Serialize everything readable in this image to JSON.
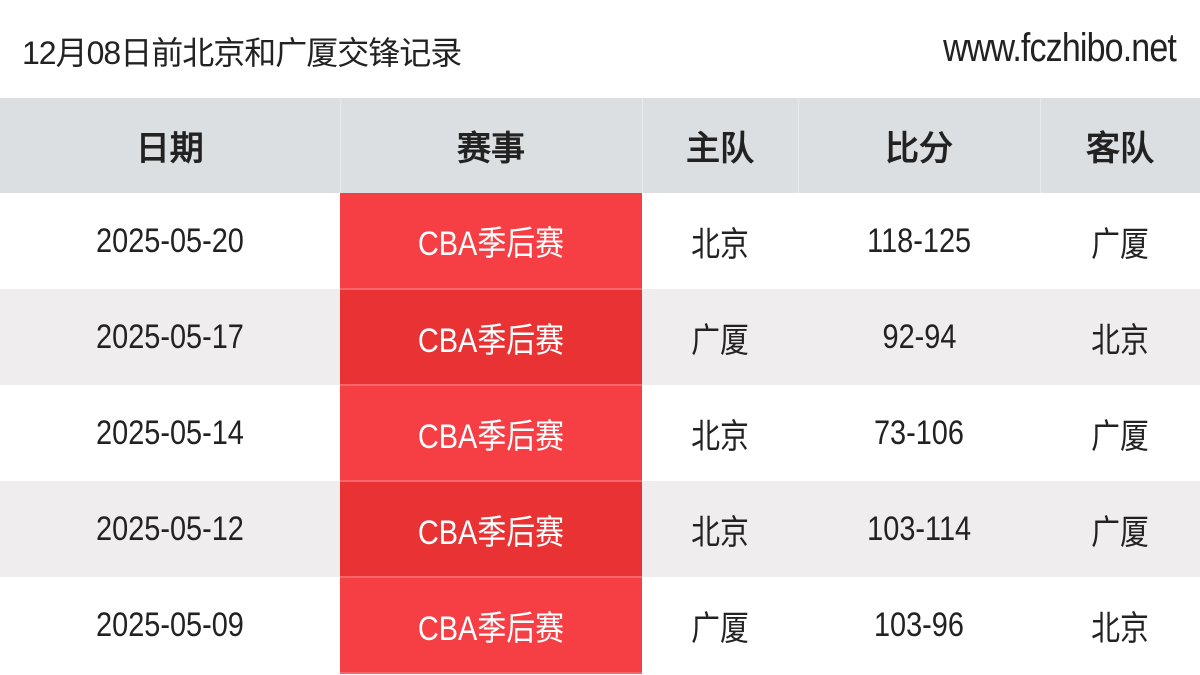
{
  "header": {
    "title": "12月08日前北京和广厦交锋记录",
    "site": "www.fczhibo.net"
  },
  "columns": [
    "日期",
    "赛事",
    "主队",
    "比分",
    "客队"
  ],
  "rows": [
    {
      "date": "2025-05-20",
      "competition": "CBA季后赛",
      "home": "北京",
      "score": "118-125",
      "away": "广厦"
    },
    {
      "date": "2025-05-17",
      "competition": "CBA季后赛",
      "home": "广厦",
      "score": "92-94",
      "away": "北京"
    },
    {
      "date": "2025-05-14",
      "competition": "CBA季后赛",
      "home": "北京",
      "score": "73-106",
      "away": "广厦"
    },
    {
      "date": "2025-05-12",
      "competition": "CBA季后赛",
      "home": "北京",
      "score": "103-114",
      "away": "广厦"
    },
    {
      "date": "2025-05-09",
      "competition": "CBA季后赛",
      "home": "广厦",
      "score": "103-96",
      "away": "北京"
    }
  ],
  "colors": {
    "competition_odd": "#f63f45",
    "competition_even": "#e83234",
    "header_bg": "#dcdfe1",
    "row_even_bg": "#efeded"
  }
}
